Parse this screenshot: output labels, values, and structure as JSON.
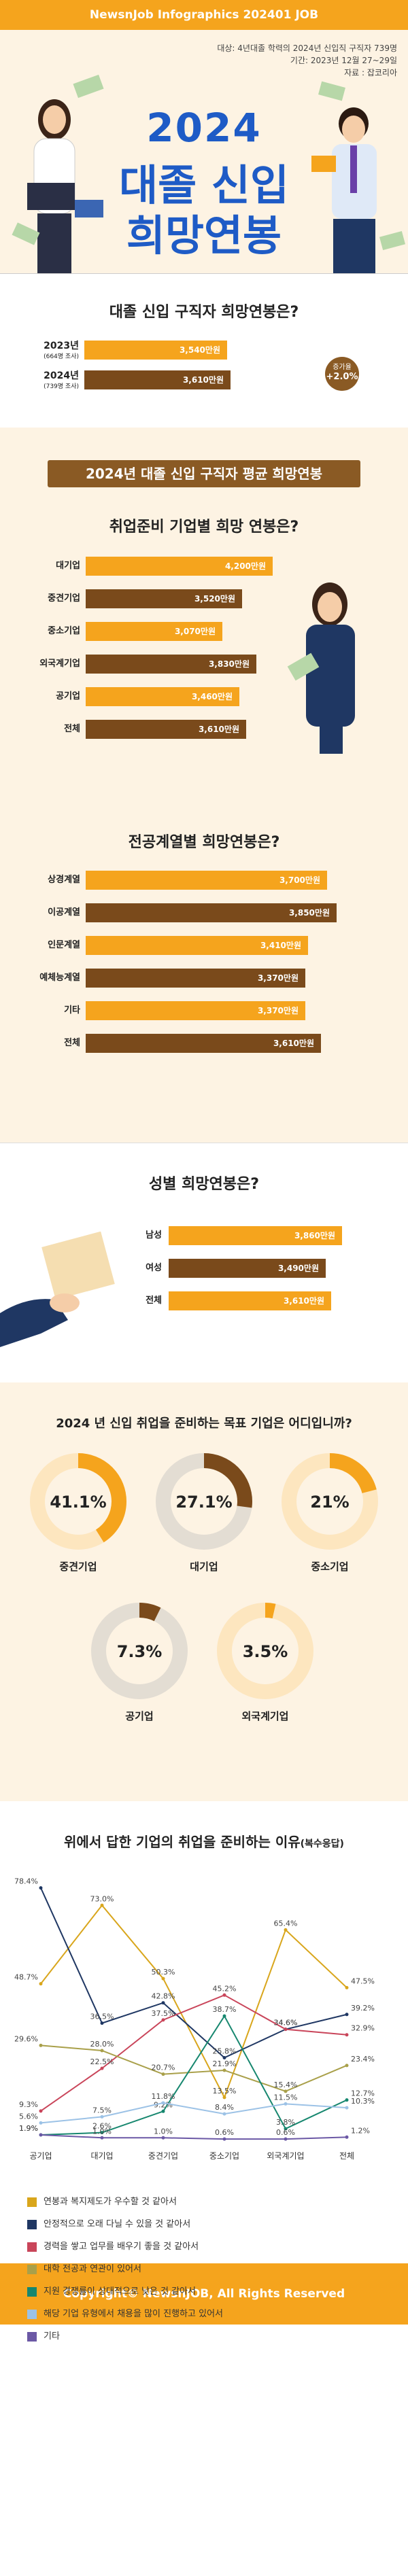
{
  "header": {
    "brand": "NewsnJob Infographics 202401 JOB"
  },
  "hero": {
    "meta1": "대상: 4년대졸 학력의 2024년 신입직 구직자 739명",
    "meta2": "기간: 2023년 12월 27~29일",
    "meta3": "자료 : 잡코리아",
    "title_year": "2024",
    "title_line1": "대졸 신입",
    "title_line2": "희망연봉"
  },
  "section1": {
    "title": "대졸 신입 구직자 희망연봉은?",
    "rows": [
      {
        "year": "2023년",
        "sub": "(664명 조사)",
        "value": "3,540만원",
        "amount": 3540
      },
      {
        "year": "2024년",
        "sub": "(739명 조사)",
        "value": "3,610만원",
        "amount": 3610
      }
    ],
    "badge_top": "증가율",
    "badge_value": "+2.0%"
  },
  "section2": {
    "banner": "2024년 대졸 신입 구직자 평균 희망연봉",
    "company": {
      "title": "취업준비 기업별 희망 연봉은?",
      "rows": [
        {
          "label": "대기업",
          "value": "4,200만원",
          "amount": 4200
        },
        {
          "label": "중견기업",
          "value": "3,520만원",
          "amount": 3520
        },
        {
          "label": "중소기업",
          "value": "3,070만원",
          "amount": 3070
        },
        {
          "label": "외국계기업",
          "value": "3,830만원",
          "amount": 3830
        },
        {
          "label": "공기업",
          "value": "3,460만원",
          "amount": 3460
        },
        {
          "label": "전체",
          "value": "3,610만원",
          "amount": 3610
        }
      ]
    },
    "major": {
      "title": "전공계열별 희망연봉은?",
      "rows": [
        {
          "label": "상경계열",
          "value": "3,700만원",
          "amount": 3700
        },
        {
          "label": "이공계열",
          "value": "3,850만원",
          "amount": 3850
        },
        {
          "label": "인문계열",
          "value": "3,410만원",
          "amount": 3410
        },
        {
          "label": "예체능계열",
          "value": "3,370만원",
          "amount": 3370
        },
        {
          "label": "기타",
          "value": "3,370만원",
          "amount": 3370
        },
        {
          "label": "전체",
          "value": "3,610만원",
          "amount": 3610
        }
      ]
    }
  },
  "section3": {
    "title": "성별 희망연봉은?",
    "rows": [
      {
        "label": "남성",
        "value": "3,860만원",
        "amount": 3860
      },
      {
        "label": "여성",
        "value": "3,490만원",
        "amount": 3490
      },
      {
        "label": "전체",
        "value": "3,610만원",
        "amount": 3610
      }
    ]
  },
  "section4": {
    "title": "2024 년 신입 취업을 준비하는 목표 기업은 어디입니까?",
    "donuts": [
      {
        "label": "중견기업",
        "pct_text": "41.1%",
        "pct": 41.1
      },
      {
        "label": "대기업",
        "pct_text": "27.1%",
        "pct": 27.1
      },
      {
        "label": "중소기업",
        "pct_text": "21%",
        "pct": 21
      },
      {
        "label": "공기업",
        "pct_text": "7.3%",
        "pct": 7.3
      },
      {
        "label": "외국계기업",
        "pct_text": "3.5%",
        "pct": 3.5
      }
    ]
  },
  "section5": {
    "title": "위에서 답한 기업의 취업을 준비하는 이유",
    "title_note": "(복수응답)"
  },
  "colors": {
    "orange": "#f5a41d",
    "brown": "#7a4a1b",
    "cream": "#fdf3e3",
    "blue_title": "#1e5bc6"
  },
  "chart_data": {
    "type": "line",
    "title": "위에서 답한 기업의 취업을 준비하는 이유(복수응답)",
    "categories": [
      "공기업",
      "대기업",
      "중견기업",
      "중소기업",
      "외국계기업",
      "전체"
    ],
    "ylim": [
      0,
      80
    ],
    "series": [
      {
        "name": "연봉과 복지제도가 우수할 것 같아서",
        "color": "#d9a61c",
        "values": [
          48.7,
          73.0,
          50.3,
          13.5,
          65.4,
          47.5
        ]
      },
      {
        "name": "안정적으로 오래 다닐 수 있을 것 같아서",
        "color": "#1f3763",
        "values": [
          78.4,
          36.5,
          42.8,
          25.8,
          34.6,
          39.2
        ]
      },
      {
        "name": "경력을 쌓고 업무를 배우기 좋을 것 같아서",
        "color": "#c9455a",
        "values": [
          9.3,
          22.5,
          37.5,
          45.2,
          34.6,
          32.9
        ]
      },
      {
        "name": "대학 전공과 연관이 있어서",
        "color": "#a9a04a",
        "values": [
          29.6,
          28.0,
          20.7,
          21.9,
          15.4,
          23.4
        ]
      },
      {
        "name": "지원 경쟁률이 상대적으로 낮은 것 같아서",
        "color": "#17876f",
        "values": [
          1.9,
          2.6,
          9.2,
          38.7,
          3.8,
          12.7
        ]
      },
      {
        "name": "해당 기업 유형에서 채용을 많이 진행하고 있어서",
        "color": "#9cc2e6",
        "values": [
          5.6,
          7.5,
          11.8,
          8.4,
          11.5,
          10.3
        ]
      },
      {
        "name": "기타",
        "color": "#6b58a5",
        "values": [
          1.9,
          1.0,
          1.0,
          0.6,
          0.6,
          1.2
        ]
      }
    ],
    "point_labels": [
      [
        "48.7%",
        "73.0%",
        "50.3%",
        "13.5%",
        "65.4%",
        "47.5%"
      ],
      [
        "78.4%",
        "36.5%",
        "42.8%",
        "25.8%",
        "34.6%",
        "39.2%"
      ],
      [
        "9.3%",
        "22.5%",
        "37.5%",
        "45.2%",
        "34.6%",
        "32.9%"
      ],
      [
        "29.6%",
        "28.0%",
        "20.7%",
        "21.9%",
        "15.4%",
        "23.4%"
      ],
      [
        "1.9%",
        "2.6%",
        "9.2%",
        "38.7%",
        "3.8%",
        "12.7%"
      ],
      [
        "5.6%",
        "7.5%",
        "11.8%",
        "8.4%",
        "11.5%",
        "10.3%"
      ],
      [
        "1.9%",
        "1.0%",
        "1.0%",
        "0.6%",
        "0.6%",
        "1.2%"
      ]
    ]
  },
  "footer": {
    "copyright": "Copyright© NewsnJOB, All Rights Reserved"
  }
}
